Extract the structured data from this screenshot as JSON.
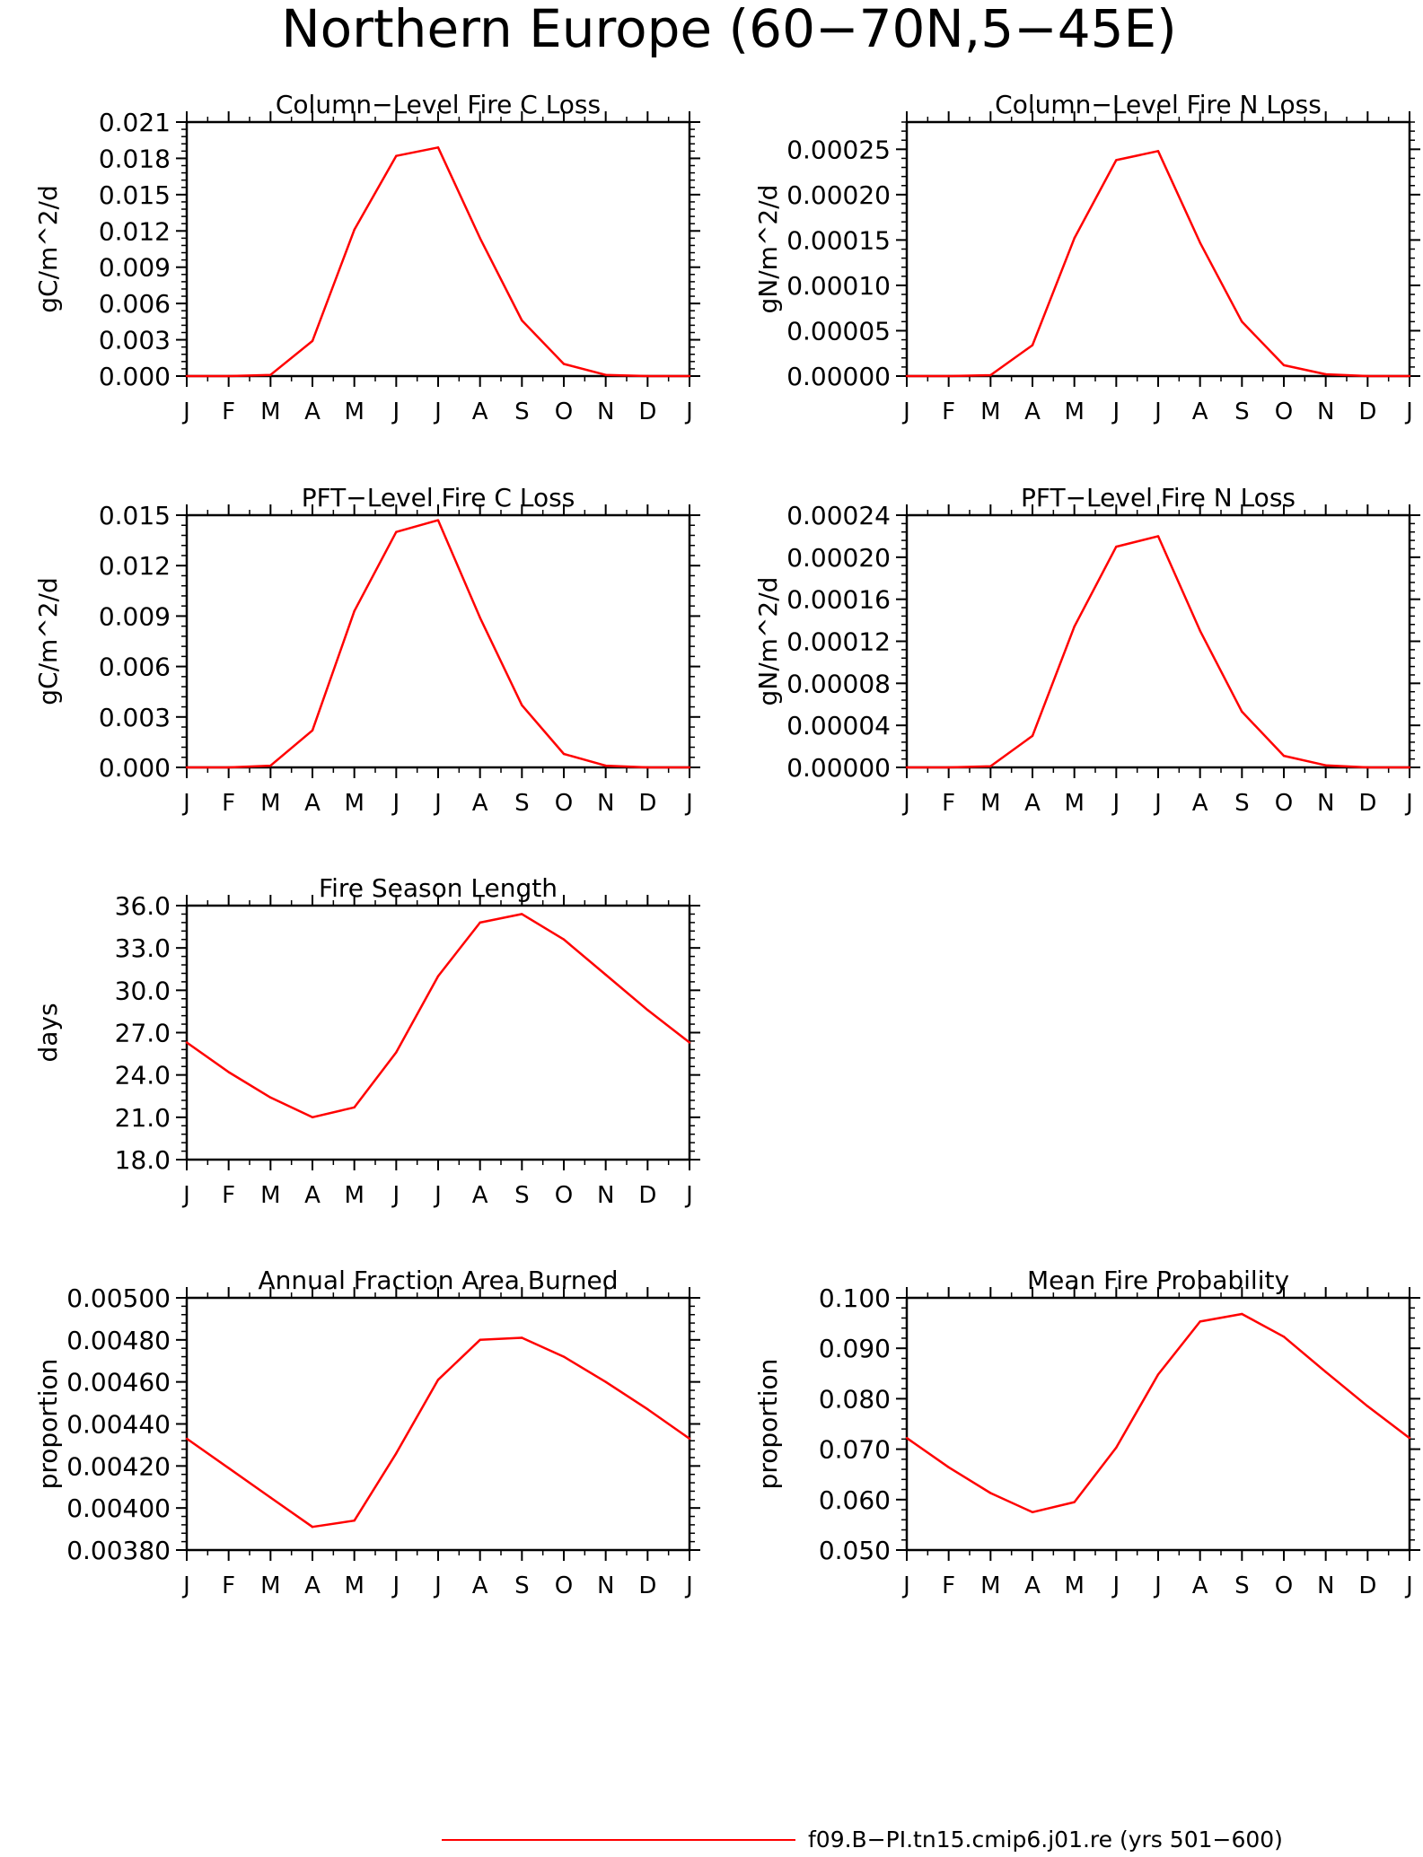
{
  "title": "Northern Europe (60−70N,5−45E)",
  "legend": {
    "label": "f09.B−PI.tn15.cmip6.j01.re (yrs 501−600)",
    "color": "#ff0000"
  },
  "chart_data": [
    {
      "type": "line",
      "title": "Column−Level Fire C Loss",
      "ylabel": "gC/m^2/d",
      "categories": [
        "J",
        "F",
        "M",
        "A",
        "M",
        "J",
        "J",
        "A",
        "S",
        "O",
        "N",
        "D",
        "J"
      ],
      "yticks": [
        "0.000",
        "0.003",
        "0.006",
        "0.009",
        "0.012",
        "0.015",
        "0.018",
        "0.021"
      ],
      "ylim": [
        0,
        0.021
      ],
      "series": [
        {
          "values": [
            0.0,
            0.0,
            0.0001,
            0.0029,
            0.0121,
            0.0182,
            0.0189,
            0.0114,
            0.0046,
            0.001,
            0.0001,
            0.0,
            0.0
          ],
          "color": "#ff0000"
        }
      ]
    },
    {
      "type": "line",
      "title": "Column−Level Fire N Loss",
      "ylabel": "gN/m^2/d",
      "categories": [
        "J",
        "F",
        "M",
        "A",
        "M",
        "J",
        "J",
        "A",
        "S",
        "O",
        "N",
        "D",
        "J"
      ],
      "yticks": [
        "0.00000",
        "0.00005",
        "0.00010",
        "0.00015",
        "0.00020",
        "0.00025"
      ],
      "ylim": [
        0,
        0.00028
      ],
      "series": [
        {
          "values": [
            0.0,
            0.0,
            1e-06,
            3.4e-05,
            0.000152,
            0.000238,
            0.000248,
            0.000147,
            6e-05,
            1.2e-05,
            2e-06,
            0.0,
            0.0
          ],
          "color": "#ff0000"
        }
      ]
    },
    {
      "type": "line",
      "title": "PFT−Level Fire C Loss",
      "ylabel": "gC/m^2/d",
      "categories": [
        "J",
        "F",
        "M",
        "A",
        "M",
        "J",
        "J",
        "A",
        "S",
        "O",
        "N",
        "D",
        "J"
      ],
      "yticks": [
        "0.000",
        "0.003",
        "0.006",
        "0.009",
        "0.012",
        "0.015"
      ],
      "ylim": [
        0,
        0.015
      ],
      "series": [
        {
          "values": [
            0.0,
            0.0,
            0.0001,
            0.0022,
            0.0093,
            0.014,
            0.0147,
            0.0089,
            0.0037,
            0.0008,
            0.0001,
            0.0,
            0.0
          ],
          "color": "#ff0000"
        }
      ]
    },
    {
      "type": "line",
      "title": "PFT−Level Fire N Loss",
      "ylabel": "gN/m^2/d",
      "categories": [
        "J",
        "F",
        "M",
        "A",
        "M",
        "J",
        "J",
        "A",
        "S",
        "O",
        "N",
        "D",
        "J"
      ],
      "yticks": [
        "0.00000",
        "0.00004",
        "0.00008",
        "0.00012",
        "0.00016",
        "0.00020",
        "0.00024"
      ],
      "ylim": [
        0,
        0.00024
      ],
      "series": [
        {
          "values": [
            0.0,
            0.0,
            1e-06,
            3e-05,
            0.000134,
            0.00021,
            0.00022,
            0.00013,
            5.3e-05,
            1.1e-05,
            2e-06,
            0.0,
            0.0
          ],
          "color": "#ff0000"
        }
      ]
    },
    {
      "type": "line",
      "title": "Fire Season Length",
      "ylabel": "days",
      "categories": [
        "J",
        "F",
        "M",
        "A",
        "M",
        "J",
        "J",
        "A",
        "S",
        "O",
        "N",
        "D",
        "J"
      ],
      "yticks": [
        "18.0",
        "21.0",
        "24.0",
        "27.0",
        "30.0",
        "33.0",
        "36.0"
      ],
      "ylim": [
        18,
        36
      ],
      "series": [
        {
          "values": [
            26.3,
            24.2,
            22.4,
            21.0,
            21.7,
            25.6,
            31.0,
            34.8,
            35.4,
            33.6,
            31.1,
            28.6,
            26.3
          ],
          "color": "#ff0000"
        }
      ]
    },
    {
      "type": "line",
      "title": "Annual Fraction Area Burned",
      "ylabel": "proportion",
      "categories": [
        "J",
        "F",
        "M",
        "A",
        "M",
        "J",
        "J",
        "A",
        "S",
        "O",
        "N",
        "D",
        "J"
      ],
      "yticks": [
        "0.00380",
        "0.00400",
        "0.00420",
        "0.00440",
        "0.00460",
        "0.00480",
        "0.00500"
      ],
      "ylim": [
        0.0038,
        0.005
      ],
      "series": [
        {
          "values": [
            0.00433,
            0.00419,
            0.00405,
            0.00391,
            0.00394,
            0.00426,
            0.00461,
            0.0048,
            0.00481,
            0.00472,
            0.0046,
            0.00447,
            0.00433
          ],
          "color": "#ff0000"
        }
      ]
    },
    {
      "type": "line",
      "title": "Mean Fire Probability",
      "ylabel": "proportion",
      "categories": [
        "J",
        "F",
        "M",
        "A",
        "M",
        "J",
        "J",
        "A",
        "S",
        "O",
        "N",
        "D",
        "J"
      ],
      "yticks": [
        "0.050",
        "0.060",
        "0.070",
        "0.080",
        "0.090",
        "0.100"
      ],
      "ylim": [
        0.05,
        0.1
      ],
      "series": [
        {
          "values": [
            0.0722,
            0.0664,
            0.0613,
            0.0575,
            0.0595,
            0.0703,
            0.0848,
            0.0953,
            0.0968,
            0.0923,
            0.0853,
            0.0785,
            0.0722
          ],
          "color": "#ff0000"
        }
      ]
    }
  ]
}
